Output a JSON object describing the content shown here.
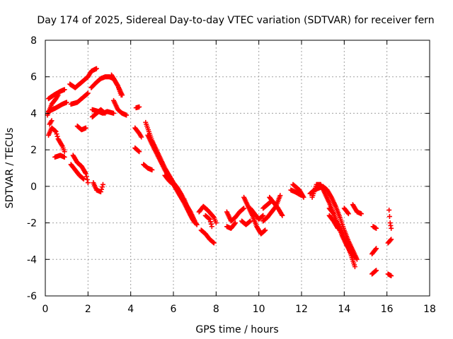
{
  "chart_data": {
    "type": "scatter",
    "title": "Day 174 of 2025, Sidereal Day-to-day VTEC variation (SDTVAR) for receiver fern",
    "xlabel": "GPS time / hours",
    "ylabel": "SDTVAR / TECUs",
    "xlim": [
      0,
      18
    ],
    "ylim": [
      -6,
      8
    ],
    "xticks": [
      0,
      2,
      4,
      6,
      8,
      10,
      12,
      14,
      16,
      18
    ],
    "yticks": [
      -6,
      -4,
      -2,
      0,
      2,
      4,
      6,
      8
    ],
    "grid": true,
    "marker": "plus",
    "color": "#ff0000",
    "tracks": [
      [
        [
          0.15,
          4.8
        ],
        [
          0.4,
          5.0
        ],
        [
          0.7,
          5.2
        ],
        [
          0.9,
          5.3
        ]
      ],
      [
        [
          0.15,
          4.1
        ],
        [
          0.5,
          4.3
        ],
        [
          0.8,
          4.5
        ],
        [
          1.0,
          4.6
        ]
      ],
      [
        [
          0.1,
          3.9
        ],
        [
          0.3,
          4.5
        ],
        [
          0.5,
          4.8
        ],
        [
          0.6,
          5.0
        ]
      ],
      [
        [
          0.15,
          2.8
        ],
        [
          0.3,
          3.2
        ],
        [
          0.5,
          3.0
        ],
        [
          0.6,
          2.6
        ],
        [
          0.8,
          2.2
        ],
        [
          0.9,
          1.9
        ]
      ],
      [
        [
          0.45,
          1.6
        ],
        [
          0.7,
          1.7
        ],
        [
          0.9,
          1.6
        ]
      ],
      [
        [
          0.2,
          3.4
        ],
        [
          0.3,
          3.6
        ]
      ],
      [
        [
          1.15,
          5.6
        ],
        [
          1.4,
          5.4
        ],
        [
          1.6,
          5.6
        ],
        [
          1.8,
          5.8
        ],
        [
          2.0,
          6.0
        ],
        [
          2.15,
          6.3
        ],
        [
          2.4,
          6.45
        ]
      ],
      [
        [
          1.2,
          4.5
        ],
        [
          1.5,
          4.6
        ],
        [
          1.8,
          4.9
        ],
        [
          2.0,
          5.1
        ]
      ],
      [
        [
          1.5,
          3.3
        ],
        [
          1.7,
          3.1
        ],
        [
          1.9,
          3.2
        ]
      ],
      [
        [
          1.3,
          1.7
        ],
        [
          1.5,
          1.3
        ],
        [
          1.7,
          1.1
        ],
        [
          1.9,
          0.7
        ],
        [
          2.0,
          0.2
        ]
      ],
      [
        [
          1.2,
          1.2
        ],
        [
          1.4,
          0.9
        ],
        [
          1.6,
          0.6
        ],
        [
          1.8,
          0.4
        ]
      ],
      [
        [
          2.25,
          0.2
        ],
        [
          2.4,
          -0.2
        ],
        [
          2.6,
          -0.3
        ],
        [
          2.7,
          0.1
        ]
      ],
      [
        [
          2.15,
          5.4
        ],
        [
          2.4,
          5.7
        ],
        [
          2.6,
          5.9
        ],
        [
          2.8,
          6.0
        ],
        [
          3.0,
          6.0
        ],
        [
          3.2,
          5.9
        ],
        [
          3.4,
          5.5
        ],
        [
          3.55,
          5.0
        ]
      ],
      [
        [
          2.2,
          4.2
        ],
        [
          2.5,
          4.1
        ],
        [
          2.7,
          4.0
        ],
        [
          2.9,
          4.1
        ],
        [
          3.2,
          4.0
        ]
      ],
      [
        [
          2.2,
          3.8
        ],
        [
          2.4,
          4.0
        ],
        [
          2.6,
          4.2
        ],
        [
          2.8,
          4.0
        ]
      ],
      [
        [
          3.1,
          6.1
        ],
        [
          3.4,
          5.5
        ],
        [
          3.6,
          5.0
        ]
      ],
      [
        [
          3.2,
          4.7
        ],
        [
          3.4,
          4.2
        ],
        [
          3.6,
          4.0
        ],
        [
          3.8,
          3.9
        ]
      ],
      [
        [
          4.25,
          4.3
        ],
        [
          4.4,
          4.35
        ]
      ],
      [
        [
          4.2,
          3.2
        ],
        [
          4.4,
          2.9
        ],
        [
          4.5,
          2.7
        ]
      ],
      [
        [
          4.2,
          2.1
        ],
        [
          4.4,
          1.9
        ]
      ],
      [
        [
          4.7,
          3.5
        ],
        [
          4.85,
          3.0
        ],
        [
          5.0,
          2.5
        ],
        [
          5.2,
          2.0
        ],
        [
          5.4,
          1.5
        ],
        [
          5.6,
          1.0
        ],
        [
          5.8,
          0.6
        ],
        [
          6.0,
          0.2
        ],
        [
          6.2,
          -0.1
        ],
        [
          6.4,
          -0.5
        ],
        [
          6.6,
          -1.0
        ],
        [
          6.8,
          -1.4
        ],
        [
          7.0,
          -1.9
        ]
      ],
      [
        [
          4.8,
          2.8
        ],
        [
          5.0,
          2.3
        ],
        [
          5.3,
          1.6
        ],
        [
          5.6,
          0.9
        ],
        [
          5.9,
          0.3
        ],
        [
          6.2,
          -0.3
        ],
        [
          6.5,
          -0.9
        ],
        [
          6.8,
          -1.6
        ],
        [
          7.0,
          -2.0
        ]
      ],
      [
        [
          4.6,
          1.2
        ],
        [
          4.8,
          1.0
        ],
        [
          5.0,
          0.9
        ]
      ],
      [
        [
          5.6,
          0.6
        ],
        [
          5.8,
          0.3
        ],
        [
          6.0,
          0.1
        ]
      ],
      [
        [
          6.5,
          -0.7
        ],
        [
          6.7,
          -1.3
        ],
        [
          6.9,
          -1.8
        ],
        [
          7.1,
          -2.1
        ]
      ],
      [
        [
          7.2,
          -1.4
        ],
        [
          7.4,
          -1.1
        ],
        [
          7.6,
          -1.3
        ],
        [
          7.9,
          -1.7
        ],
        [
          8.0,
          -2.0
        ]
      ],
      [
        [
          7.3,
          -2.4
        ],
        [
          7.5,
          -2.6
        ],
        [
          7.7,
          -2.9
        ],
        [
          7.9,
          -3.1
        ]
      ],
      [
        [
          7.5,
          -1.6
        ],
        [
          7.7,
          -1.8
        ],
        [
          7.8,
          -2.2
        ]
      ],
      [
        [
          8.5,
          -1.4
        ],
        [
          8.7,
          -1.9
        ],
        [
          8.9,
          -1.7
        ],
        [
          9.1,
          -1.4
        ],
        [
          9.3,
          -1.2
        ]
      ],
      [
        [
          8.5,
          -2.2
        ],
        [
          8.7,
          -2.3
        ],
        [
          8.9,
          -2.0
        ]
      ],
      [
        [
          9.3,
          -0.6
        ],
        [
          9.5,
          -1.1
        ],
        [
          9.7,
          -1.6
        ],
        [
          9.9,
          -2.2
        ],
        [
          10.1,
          -2.6
        ],
        [
          10.3,
          -2.4
        ]
      ],
      [
        [
          9.6,
          -1.2
        ],
        [
          9.8,
          -1.5
        ],
        [
          10.0,
          -1.8
        ],
        [
          10.2,
          -1.6
        ]
      ],
      [
        [
          9.2,
          -1.9
        ],
        [
          9.4,
          -2.1
        ],
        [
          9.6,
          -1.9
        ]
      ],
      [
        [
          10.2,
          -1.9
        ],
        [
          10.4,
          -1.7
        ],
        [
          10.6,
          -1.4
        ],
        [
          10.8,
          -1.1
        ],
        [
          11.0,
          -0.5
        ]
      ],
      [
        [
          10.5,
          -0.6
        ],
        [
          10.7,
          -0.9
        ],
        [
          10.9,
          -1.2
        ],
        [
          11.1,
          -1.6
        ]
      ],
      [
        [
          10.2,
          -1.2
        ],
        [
          10.4,
          -1.0
        ],
        [
          10.6,
          -0.8
        ]
      ],
      [
        [
          11.5,
          -0.2
        ],
        [
          11.7,
          -0.3
        ],
        [
          12.0,
          -0.5
        ]
      ],
      [
        [
          11.6,
          0.1
        ],
        [
          11.9,
          -0.2
        ],
        [
          12.1,
          -0.6
        ]
      ],
      [
        [
          12.4,
          -0.4
        ],
        [
          12.6,
          -0.2
        ],
        [
          12.8,
          -0.1
        ],
        [
          13.0,
          0.0
        ],
        [
          13.2,
          -0.2
        ],
        [
          13.4,
          -0.6
        ],
        [
          13.6,
          -1.1
        ],
        [
          13.8,
          -1.7
        ],
        [
          14.0,
          -2.4
        ],
        [
          14.2,
          -3.0
        ],
        [
          14.4,
          -3.5
        ],
        [
          14.6,
          -4.0
        ]
      ],
      [
        [
          12.5,
          -0.6
        ],
        [
          12.7,
          0.1
        ],
        [
          12.9,
          0.1
        ],
        [
          13.1,
          -0.4
        ],
        [
          13.3,
          -0.9
        ],
        [
          13.5,
          -1.5
        ],
        [
          13.7,
          -2.1
        ],
        [
          13.9,
          -2.7
        ],
        [
          14.1,
          -3.2
        ],
        [
          14.3,
          -3.6
        ],
        [
          14.5,
          -3.9
        ]
      ],
      [
        [
          13.7,
          -2.0
        ],
        [
          13.9,
          -2.6
        ],
        [
          14.1,
          -3.1
        ],
        [
          14.3,
          -3.7
        ],
        [
          14.5,
          -4.4
        ]
      ],
      [
        [
          13.3,
          -1.6
        ],
        [
          13.5,
          -1.9
        ],
        [
          13.7,
          -2.3
        ]
      ],
      [
        [
          13.3,
          -1.2
        ],
        [
          13.5,
          -1.5
        ]
      ],
      [
        [
          14.0,
          -1.2
        ],
        [
          14.2,
          -1.5
        ]
      ],
      [
        [
          14.4,
          -1.0
        ],
        [
          14.6,
          -1.4
        ],
        [
          14.8,
          -1.5
        ]
      ],
      [
        [
          15.35,
          -2.2
        ],
        [
          15.5,
          -2.3
        ]
      ],
      [
        [
          15.3,
          -3.7
        ],
        [
          15.5,
          -3.4
        ]
      ],
      [
        [
          15.3,
          -4.8
        ],
        [
          15.5,
          -4.6
        ]
      ],
      [
        [
          16.1,
          -1.3
        ],
        [
          16.15,
          -2.0
        ],
        [
          16.2,
          -2.3
        ]
      ],
      [
        [
          16.05,
          -3.1
        ],
        [
          16.2,
          -2.9
        ]
      ],
      [
        [
          16.05,
          -4.8
        ],
        [
          16.2,
          -4.9
        ]
      ]
    ]
  }
}
